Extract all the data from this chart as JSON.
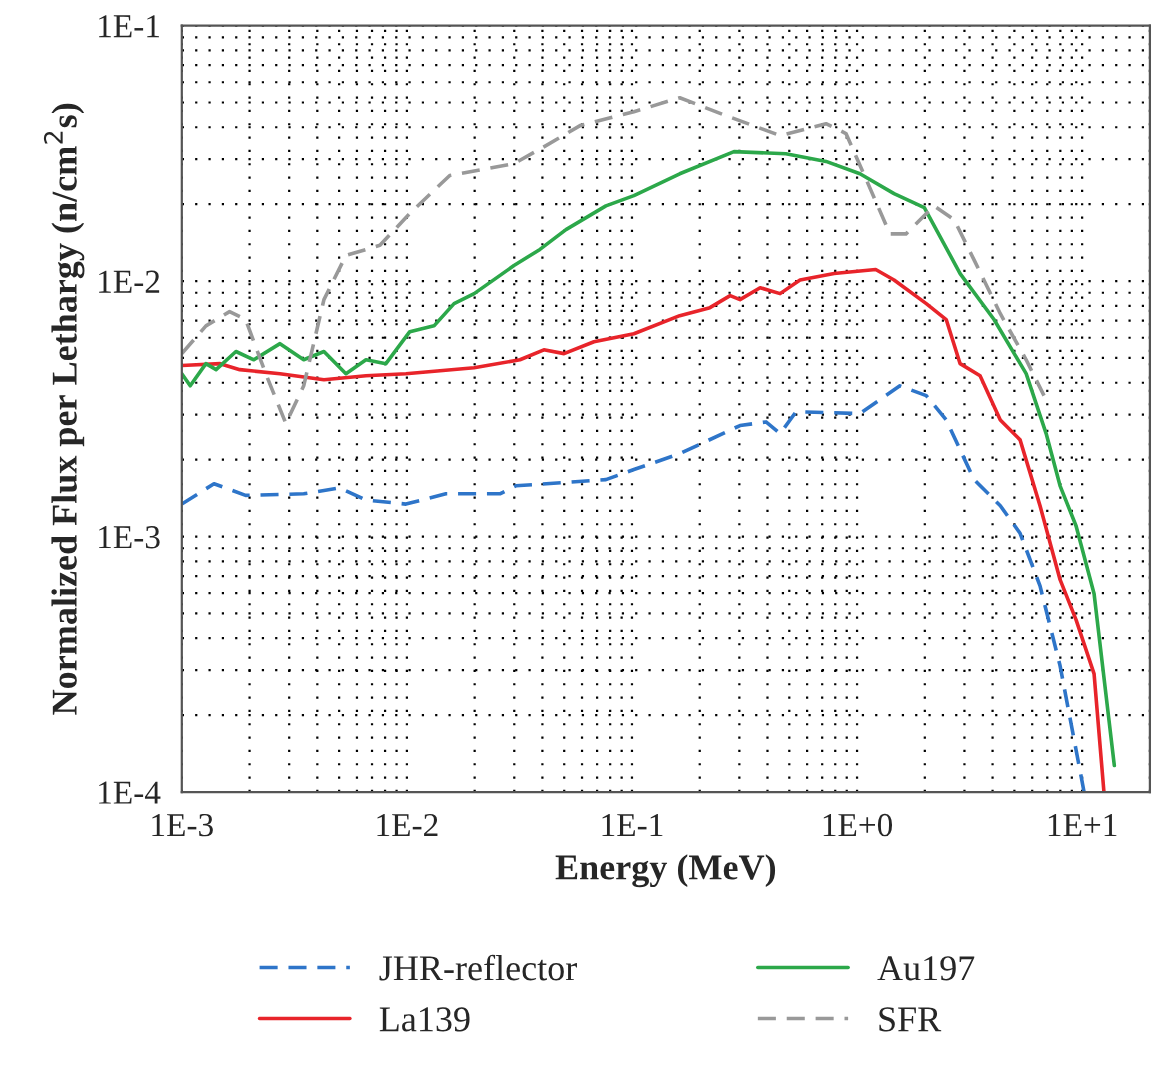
{
  "chart_data": {
    "type": "line",
    "xlabel": "Energy (MeV)",
    "ylabel": "Normalized Flux per Lethargy (n/cm$^{2}$s)",
    "log": "xy",
    "grid": true,
    "legend": "bottom",
    "xlim": [
      0.001,
      20
    ],
    "ylim": [
      0.0001,
      0.1
    ],
    "xticks": [
      {
        "value": 0.001,
        "label": "1E-3"
      },
      {
        "value": 0.01,
        "label": "1E-2"
      },
      {
        "value": 0.1,
        "label": "1E-1"
      },
      {
        "value": 1,
        "label": "1E+0"
      },
      {
        "value": 10,
        "label": "1E+1"
      }
    ],
    "yticks": [
      {
        "value": 0.0001,
        "label": "1E-4"
      },
      {
        "value": 0.001,
        "label": "1E-3"
      },
      {
        "value": 0.01,
        "label": "1E-2"
      },
      {
        "value": 0.1,
        "label": "1E-1"
      }
    ],
    "series": [
      {
        "name": "JHR-reflector",
        "color": "#2e75c9",
        "line_style": "dashed",
        "x": [
          0.001,
          0.00139,
          0.00192,
          0.00348,
          0.00504,
          0.00658,
          0.0099,
          0.0149,
          0.0259,
          0.0305,
          0.0766,
          0.102,
          0.163,
          0.302,
          0.394,
          0.455,
          0.536,
          1.03,
          1.55,
          2.03,
          2.49,
          3.31,
          4.33,
          5.3,
          6.5,
          7.98,
          10.2
        ],
        "values": [
          0.00134,
          0.00161,
          0.00145,
          0.00147,
          0.00155,
          0.00139,
          0.00134,
          0.00147,
          0.00147,
          0.00158,
          0.00167,
          0.00183,
          0.00211,
          0.00272,
          0.00281,
          0.00253,
          0.00308,
          0.00303,
          0.00389,
          0.00356,
          0.00286,
          0.00167,
          0.00132,
          0.00103,
          0.000641,
          0.000312,
          0.0001
        ]
      },
      {
        "name": "La139",
        "color": "#e8242a",
        "line_style": "solid",
        "x": [
          0.001,
          0.00148,
          0.00181,
          0.00273,
          0.00428,
          0.00658,
          0.0099,
          0.0199,
          0.0318,
          0.0406,
          0.0499,
          0.0678,
          0.102,
          0.163,
          0.222,
          0.273,
          0.302,
          0.371,
          0.455,
          0.558,
          0.791,
          1.21,
          1.46,
          2.03,
          2.49,
          2.87,
          3.52,
          4.33,
          5.3,
          6.5,
          7.98,
          9.4,
          11.3,
          12.5
        ],
        "values": [
          0.00467,
          0.00475,
          0.0045,
          0.00434,
          0.00411,
          0.00426,
          0.00434,
          0.00458,
          0.00492,
          0.00538,
          0.0052,
          0.00579,
          0.00622,
          0.00732,
          0.00787,
          0.00877,
          0.00846,
          0.00942,
          0.00893,
          0.0101,
          0.0107,
          0.0111,
          0.0101,
          0.00816,
          0.00707,
          0.00475,
          0.00426,
          0.00286,
          0.00239,
          0.00132,
          0.000678,
          0.000472,
          0.00029,
          0.0001
        ]
      },
      {
        "name": "Au197",
        "color": "#2ca84a",
        "line_style": "solid",
        "x": [
          0.001,
          0.00109,
          0.00128,
          0.00142,
          0.00174,
          0.00209,
          0.00273,
          0.00348,
          0.00428,
          0.00536,
          0.00658,
          0.00807,
          0.0103,
          0.0132,
          0.0162,
          0.0199,
          0.0299,
          0.039,
          0.0509,
          0.0766,
          0.102,
          0.163,
          0.284,
          0.483,
          0.728,
          1.03,
          1.46,
          1.99,
          2.87,
          4.06,
          5.64,
          6.92,
          7.98,
          9.4,
          11.3,
          13.9
        ],
        "values": [
          0.00434,
          0.00389,
          0.00475,
          0.0045,
          0.0053,
          0.00492,
          0.00569,
          0.00492,
          0.0053,
          0.00434,
          0.00492,
          0.00475,
          0.00634,
          0.00668,
          0.00816,
          0.00893,
          0.0115,
          0.0133,
          0.0159,
          0.0197,
          0.0216,
          0.0263,
          0.0321,
          0.0315,
          0.0294,
          0.0263,
          0.022,
          0.0194,
          0.0107,
          0.00707,
          0.00434,
          0.00253,
          0.00158,
          0.0011,
          0.000597,
          0.000127
        ]
      },
      {
        "name": "SFR",
        "color": "#999999",
        "line_style": "dashed",
        "x": [
          0.001,
          0.00128,
          0.00163,
          0.00192,
          0.00236,
          0.0029,
          0.00348,
          0.00428,
          0.00536,
          0.00759,
          0.0103,
          0.0155,
          0.0299,
          0.0415,
          0.0588,
          0.102,
          0.163,
          0.262,
          0.455,
          0.728,
          0.893,
          1.1,
          1.4,
          1.65,
          2.2,
          2.7,
          3.31,
          4.33,
          5.64,
          6.77
        ],
        "values": [
          0.0052,
          0.00668,
          0.00759,
          0.00707,
          0.00434,
          0.00277,
          0.00389,
          0.00846,
          0.0126,
          0.0138,
          0.0184,
          0.0259,
          0.0288,
          0.0339,
          0.0406,
          0.046,
          0.0522,
          0.0444,
          0.0371,
          0.0413,
          0.0378,
          0.0249,
          0.0153,
          0.0153,
          0.0197,
          0.0174,
          0.0121,
          0.00745,
          0.00492,
          0.00356
        ]
      }
    ]
  }
}
